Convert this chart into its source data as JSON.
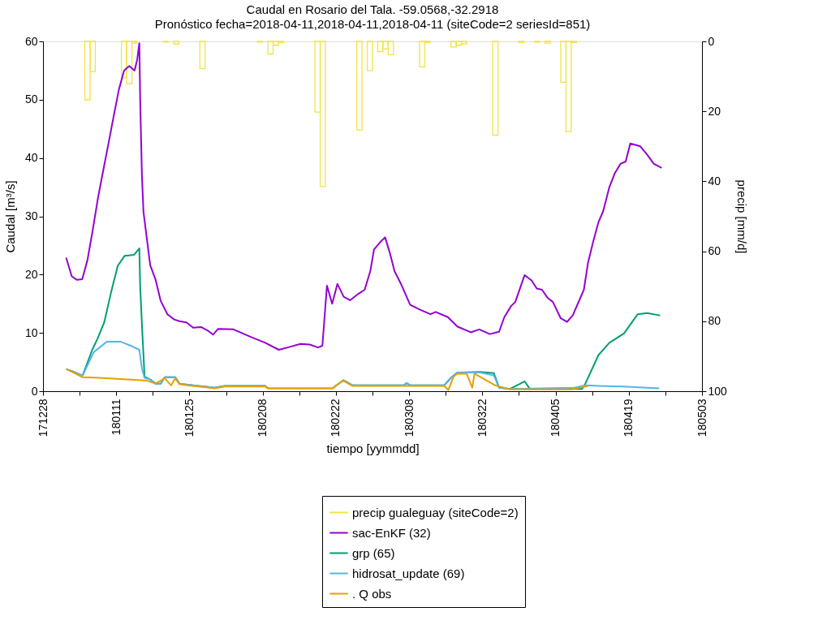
{
  "chart_data": {
    "type": "line",
    "title": "Caudal en Rosario del Tala. -59.0568,-32.2918",
    "subtitle": "Pronóstico fecha=2018-04-11,2018-04-11,2018-04-11 (siteCode=2 seriesId=851)",
    "xlabel": "tiempo [yymmdd]",
    "ylabel": "Caudal [m³/s]",
    "y2label": "precip [mm/d]",
    "xlim": [
      "2017-12-28",
      "2018-05-03"
    ],
    "xticks": [
      {
        "value": "2017-12-28",
        "label": "171228"
      },
      {
        "value": "2018-01-04",
        "label": null
      },
      {
        "value": "2018-01-11",
        "label": "180111"
      },
      {
        "value": "2018-01-18",
        "label": null
      },
      {
        "value": "2018-01-25",
        "label": "180125"
      },
      {
        "value": "2018-02-01",
        "label": null
      },
      {
        "value": "2018-02-08",
        "label": "180208"
      },
      {
        "value": "2018-02-15",
        "label": null
      },
      {
        "value": "2018-02-22",
        "label": "180222"
      },
      {
        "value": "2018-03-01",
        "label": null
      },
      {
        "value": "2018-03-08",
        "label": "180308"
      },
      {
        "value": "2018-03-15",
        "label": null
      },
      {
        "value": "2018-03-22",
        "label": "180322"
      },
      {
        "value": "2018-03-29",
        "label": null
      },
      {
        "value": "2018-04-05",
        "label": "180405"
      },
      {
        "value": "2018-04-12",
        "label": null
      },
      {
        "value": "2018-04-19",
        "label": "180419"
      },
      {
        "value": "2018-04-26",
        "label": null
      },
      {
        "value": "2018-05-03",
        "label": "180503"
      }
    ],
    "ylim": [
      0,
      60
    ],
    "yticks": [
      0,
      10,
      20,
      30,
      40,
      50,
      60
    ],
    "y2lim": [
      100,
      0
    ],
    "y2ticks": [
      0,
      20,
      40,
      60,
      80,
      100
    ],
    "grid": false,
    "legend": "bottom",
    "series": [
      {
        "name": "precip gualeguay (siteCode=2)",
        "type": "bar",
        "axis": "y2",
        "color": "#f0e442",
        "x": [
          "2018-01-05",
          "2018-01-06",
          "2018-01-12",
          "2018-01-13",
          "2018-01-14",
          "2018-01-20",
          "2018-01-22",
          "2018-01-27",
          "2018-02-07",
          "2018-02-09",
          "2018-02-10",
          "2018-02-11",
          "2018-02-18",
          "2018-02-19",
          "2018-02-26",
          "2018-02-28",
          "2018-03-02",
          "2018-03-03",
          "2018-03-04",
          "2018-03-10",
          "2018-03-11",
          "2018-03-16",
          "2018-03-17",
          "2018-03-18",
          "2018-03-24",
          "2018-03-29",
          "2018-04-01",
          "2018-04-03",
          "2018-04-06",
          "2018-04-07",
          "2018-04-08"
        ],
        "values": [
          16.7,
          8.6,
          10.4,
          12.1,
          0.5,
          0.2,
          0.7,
          7.8,
          0.2,
          3.6,
          1.1,
          0.3,
          20.2,
          41.5,
          25.3,
          8.4,
          2.9,
          2.1,
          3.8,
          7.3,
          0.3,
          1.6,
          1.1,
          0.7,
          26.8,
          0.3,
          0.2,
          0.5,
          11.7,
          25.8,
          0.3
        ]
      },
      {
        "name": "sac-EnKF (32)",
        "color": "#9400d3",
        "x": [
          "2018-01-01T10:00",
          "2018-01-02T12:00",
          "2018-01-03T12:00",
          "2018-01-04T12:00",
          "2018-01-05T12:00",
          "2018-01-06T12:00",
          "2018-01-07T12:00",
          "2018-01-08T12:00",
          "2018-01-09T12:00",
          "2018-01-10T12:00",
          "2018-01-11T12:00",
          "2018-01-12T12:00",
          "2018-01-13T12:00",
          "2018-01-14T12:00",
          "2018-01-15T00:00",
          "2018-01-15T10:00",
          "2018-01-15T14:00",
          "2018-01-15T22:00",
          "2018-01-16T05:00",
          "2018-01-16T17:00",
          "2018-01-17T12:00",
          "2018-01-18T12:00",
          "2018-01-19T12:00",
          "2018-01-20T19:00",
          "2018-01-22T02:00",
          "2018-01-23T02:00",
          "2018-01-24T10:00",
          "2018-01-25T17:00",
          "2018-01-27T05:00",
          "2018-01-28T12:00",
          "2018-01-29T12:00",
          "2018-01-30T12:00",
          "2018-02-02T10:00",
          "2018-02-06T00:00",
          "2018-02-08T12:00",
          "2018-02-11T02:00",
          "2018-02-13T05:00",
          "2018-02-15T05:00",
          "2018-02-17T00:00",
          "2018-02-18T14:00",
          "2018-02-19T10:00",
          "2018-02-20T07:00",
          "2018-02-21T07:00",
          "2018-02-22T07:00",
          "2018-02-23T12:00",
          "2018-02-24T17:00",
          "2018-02-26T07:00",
          "2018-02-27T12:00",
          "2018-02-28T14:00",
          "2018-03-01T07:00",
          "2018-03-02T10:00",
          "2018-03-03T10:00",
          "2018-03-04T10:00",
          "2018-03-05T05:00",
          "2018-03-06T12:00",
          "2018-03-08T05:00",
          "2018-03-10T07:00",
          "2018-03-12T02:00",
          "2018-03-13T02:00",
          "2018-03-15T10:00",
          "2018-03-17T05:00",
          "2018-03-19T19:00",
          "2018-03-21T10:00",
          "2018-03-23T10:00",
          "2018-03-25T05:00",
          "2018-03-26T05:00",
          "2018-03-27T12:00",
          "2018-03-28T07:00",
          "2018-03-30T02:00",
          "2018-03-31T10:00",
          "2018-04-01T10:00",
          "2018-04-02T10:00",
          "2018-04-03T12:00",
          "2018-04-04T12:00",
          "2018-04-06T00:00",
          "2018-04-07T05:00",
          "2018-04-08T07:00",
          "2018-04-10T10:00",
          "2018-04-11T05:00",
          "2018-04-12T05:00",
          "2018-04-13T05:00",
          "2018-04-14T02:00",
          "2018-04-15T07:00",
          "2018-04-16T07:00",
          "2018-04-17T10:00",
          "2018-04-18T10:00",
          "2018-04-19T07:00",
          "2018-04-21T05:00",
          "2018-04-22T12:00",
          "2018-04-23T19:00",
          "2018-04-25T07:00"
        ],
        "values": [
          22.9,
          19.7,
          19.1,
          19.2,
          22.5,
          27.6,
          33.1,
          37.8,
          42.4,
          47.1,
          51.7,
          55.0,
          55.8,
          55.0,
          56.8,
          59.7,
          49.9,
          36.9,
          30.8,
          27.2,
          21.6,
          19.2,
          15.5,
          13.2,
          12.3,
          12.0,
          11.8,
          10.9,
          11.0,
          10.4,
          9.7,
          10.7,
          10.6,
          9.2,
          8.3,
          7.1,
          7.6,
          8.1,
          8.0,
          7.5,
          7.8,
          18.1,
          15.0,
          18.4,
          16.2,
          15.6,
          16.7,
          17.4,
          20.6,
          24.3,
          25.5,
          26.4,
          23.4,
          20.6,
          18.3,
          14.8,
          13.9,
          13.2,
          13.6,
          12.7,
          11.1,
          10.1,
          10.6,
          9.8,
          10.2,
          12.7,
          14.6,
          15.3,
          19.9,
          19.0,
          17.6,
          17.4,
          16.0,
          15.3,
          12.5,
          11.9,
          13.0,
          17.4,
          22.0,
          25.7,
          29.0,
          30.8,
          35.0,
          37.3,
          39.0,
          39.4,
          42.5,
          42.0,
          40.6,
          39.0,
          38.3
        ]
      },
      {
        "name": "grp (65)",
        "color": "#009e73",
        "x": [
          "2018-01-04T14:00",
          "2018-01-06T10:00",
          "2018-01-07T10:00",
          "2018-01-08T17:00",
          "2018-01-10T00:00",
          "2018-01-11T07:00",
          "2018-01-12T14:00",
          "2018-01-14T10:00",
          "2018-01-15T10:00",
          "2018-01-15T14:00",
          "2018-01-16T00:00",
          "2018-01-16T10:00",
          "2018-01-17T12:00",
          "2018-01-18T12:00",
          "2018-01-19T12:00",
          "2018-01-20T07:00",
          "2018-01-22T07:00",
          "2018-01-23T02:00",
          "2018-01-24T14:00",
          "2018-01-29T19:00",
          "2018-01-31T19:00",
          "2018-02-08T12:00",
          "2018-02-09T00:00",
          "2018-02-21T10:00",
          "2018-02-23T10:00",
          "2018-02-25T05:00",
          "2018-03-07T00:00",
          "2018-03-07T12:00",
          "2018-03-08T05:00",
          "2018-03-14T17:00",
          "2018-03-16T00:00",
          "2018-03-17T05:00",
          "2018-03-21T14:00",
          "2018-03-24T05:00",
          "2018-03-25T05:00",
          "2018-03-27T07:00",
          "2018-03-29T07:00",
          "2018-03-30T02:00",
          "2018-03-31T02:00",
          "2018-04-10T02:00",
          "2018-04-10T17:00",
          "2018-04-13T05:00",
          "2018-04-15T07:00",
          "2018-04-18T02:00",
          "2018-04-20T17:00",
          "2018-04-22T12:00",
          "2018-04-25T00:00"
        ],
        "values": [
          2.7,
          7.1,
          9.0,
          11.8,
          16.9,
          21.5,
          23.2,
          23.4,
          24.5,
          17.8,
          9.9,
          2.5,
          2.0,
          1.3,
          1.3,
          2.4,
          2.4,
          1.3,
          1.1,
          0.6,
          0.9,
          0.9,
          0.5,
          null,
          1.9,
          1.0,
          1.0,
          1.4,
          1.0,
          1.0,
          2.3,
          3.2,
          3.3,
          3.1,
          0.6,
          0.4,
          1.3,
          1.7,
          0.4,
          0.4,
          1.3,
          6.2,
          8.3,
          9.9,
          13.2,
          13.4,
          13.0
        ]
      },
      {
        "name": "hidrosat_update (69)",
        "color": "#56b4e9",
        "x": [
          "2018-01-01T10:00",
          "2018-01-02T12:00",
          "2018-01-04T14:00",
          "2018-01-06T17:00",
          "2018-01-09T05:00",
          "2018-01-11T19:00",
          "2018-01-13T19:00",
          "2018-01-15T10:00",
          "2018-01-15T22:00",
          "2018-01-16T10:00",
          "2018-01-17T12:00",
          "2018-01-18T12:00",
          "2018-01-19T12:00",
          "2018-01-20T07:00",
          "2018-01-22T07:00",
          "2018-01-23T02:00",
          "2018-01-24T14:00",
          "2018-01-29T19:00",
          "2018-01-31T19:00",
          "2018-02-08T12:00",
          "2018-02-09T00:00",
          "2018-02-21T10:00",
          "2018-02-23T10:00",
          "2018-02-25T05:00",
          "2018-03-07T00:00",
          "2018-03-07T12:00",
          "2018-03-08T05:00",
          "2018-03-14T17:00",
          "2018-03-16T00:00",
          "2018-03-17T05:00",
          "2018-03-21T14:00",
          "2018-03-24T05:00",
          "2018-03-25T05:00",
          "2018-03-27T07:00",
          "2018-04-08T14:00",
          "2018-04-10T17:00",
          "2018-04-13T05:00",
          "2018-04-17T22:00",
          "2018-04-24T19:00"
        ],
        "values": [
          3.8,
          3.5,
          2.7,
          6.7,
          8.5,
          8.5,
          7.8,
          7.1,
          3.9,
          2.3,
          2.0,
          1.3,
          1.3,
          2.4,
          2.4,
          1.3,
          1.1,
          0.6,
          0.9,
          0.9,
          0.5,
          0.5,
          1.9,
          1.0,
          1.0,
          1.4,
          1.0,
          1.0,
          2.3,
          3.2,
          3.2,
          2.7,
          0.6,
          0.4,
          0.6,
          1.0,
          0.9,
          0.8,
          0.5
        ]
      },
      {
        "name": ". Q obs",
        "color": "#e69f00",
        "x": [
          "2018-01-01T10:00",
          "2018-01-04T14:00",
          "2018-01-07T17:00",
          "2018-01-13T19:00",
          "2018-01-16T22:00",
          "2018-01-18T12:00",
          "2018-01-20T07:00",
          "2018-01-21T12:00",
          "2018-01-22T07:00",
          "2018-01-23T02:00",
          "2018-01-24T14:00",
          "2018-01-29T19:00",
          "2018-01-31T19:00",
          "2018-02-08T12:00",
          "2018-02-09T00:00",
          "2018-02-21T10:00",
          "2018-02-22T00:00",
          "2018-02-23T10:00",
          "2018-02-25T05:00",
          "2018-03-14T17:00",
          "2018-03-15T12:00",
          "2018-03-16T12:00",
          "2018-03-17T05:00",
          "2018-03-19T00:00",
          "2018-03-20T02:00",
          "2018-03-20T12:00",
          "2018-03-24T12:00",
          "2018-03-27T07:00",
          "2018-04-08T00:00",
          "2018-04-11T05:00"
        ],
        "values": [
          3.8,
          2.4,
          2.3,
          2.0,
          1.8,
          1.3,
          2.2,
          1.0,
          2.2,
          1.2,
          1.0,
          0.5,
          0.8,
          0.8,
          0.5,
          0.5,
          1.0,
          1.8,
          0.9,
          0.9,
          0.2,
          2.5,
          3.0,
          3.0,
          0.6,
          3.0,
          1.0,
          0.3,
          0.3,
          0.9
        ]
      }
    ]
  }
}
